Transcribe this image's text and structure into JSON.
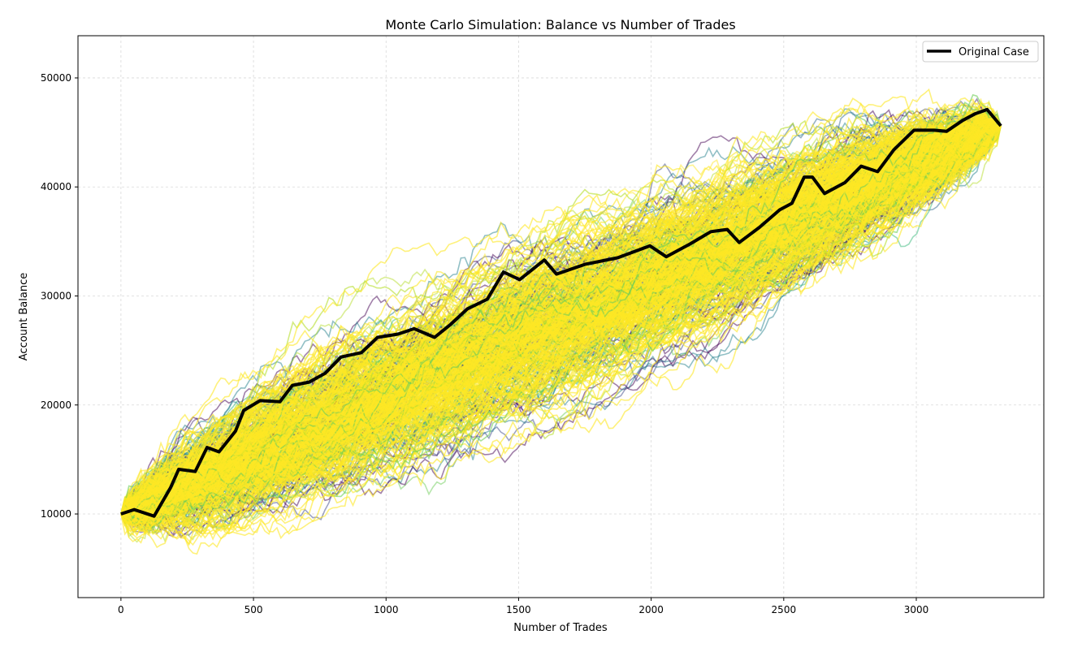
{
  "chart_data": {
    "type": "line",
    "title": "Monte Carlo Simulation: Balance vs Number of Trades",
    "xlabel": "Number of Trades",
    "ylabel": "Account Balance",
    "xlim": [
      -162,
      3481
    ],
    "ylim": [
      2330,
      53870
    ],
    "xticks": [
      0,
      500,
      1000,
      1500,
      2000,
      2500,
      3000
    ],
    "yticks": [
      10000,
      20000,
      30000,
      40000,
      50000
    ],
    "xtick_labels": [
      "0",
      "500",
      "1000",
      "1500",
      "2000",
      "2500",
      "3000"
    ],
    "ytick_labels": [
      "10000",
      "20000",
      "30000",
      "40000",
      "50000"
    ],
    "grid": true,
    "legend": {
      "placement": "top-right",
      "entries": [
        "Original Case"
      ]
    },
    "simulations": {
      "colormap": "viridis",
      "start_balance": 10000,
      "end_balance": 45600,
      "n_trades": 3319
    },
    "series": [
      {
        "name": "Original Case",
        "color": "#000000",
        "x": [
          0,
          50,
          125,
          187,
          218,
          280,
          325,
          370,
          432,
          463,
          525,
          600,
          647,
          710,
          770,
          830,
          907,
          968,
          1045,
          1106,
          1183,
          1244,
          1306,
          1382,
          1443,
          1504,
          1597,
          1643,
          1750,
          1873,
          1995,
          2057,
          2149,
          2225,
          2287,
          2332,
          2409,
          2485,
          2531,
          2577,
          2608,
          2654,
          2731,
          2792,
          2854,
          2915,
          2991,
          3068,
          3114,
          3175,
          3221,
          3267,
          3319
        ],
        "y": [
          10000,
          10400,
          9800,
          12400,
          14100,
          13900,
          16100,
          15700,
          17600,
          19500,
          20400,
          20300,
          21800,
          22100,
          22900,
          24400,
          24800,
          26200,
          26500,
          27000,
          26200,
          27400,
          28800,
          29700,
          32200,
          31500,
          33300,
          32000,
          32900,
          33500,
          34600,
          33600,
          34800,
          35900,
          36100,
          34900,
          36300,
          37900,
          38500,
          40900,
          40900,
          39400,
          40400,
          41900,
          41400,
          43400,
          45200,
          45200,
          45100,
          46100,
          46700,
          47100,
          45600
        ]
      }
    ]
  }
}
